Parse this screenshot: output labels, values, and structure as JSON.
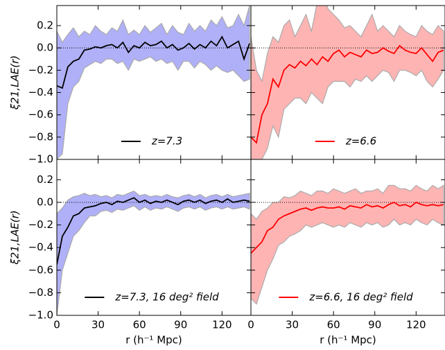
{
  "chart_data": [
    {
      "type": "line",
      "ylabel": "ξ21,LAE(r)",
      "legend": "lower center",
      "hline": 0,
      "xlim": [
        0,
        141
      ],
      "ylim": [
        -1.0,
        0.38
      ],
      "xticks": [
        0,
        30,
        60,
        90,
        120
      ],
      "yticks": [
        {
          "value": -1.0,
          "label": "−1.0"
        },
        {
          "value": -0.8,
          "label": "−0.8"
        },
        {
          "value": -0.6,
          "label": "−0.6"
        },
        {
          "value": -0.4,
          "label": "−0.4"
        },
        {
          "value": -0.2,
          "label": "−0.2"
        },
        {
          "value": 0.0,
          "label": "0.0"
        },
        {
          "value": 0.2,
          "label": "0.2"
        }
      ],
      "x": [
        0,
        4,
        8,
        12,
        16,
        20,
        24,
        28,
        32,
        36,
        40,
        44,
        48,
        52,
        56,
        60,
        64,
        68,
        72,
        76,
        80,
        84,
        88,
        92,
        96,
        100,
        104,
        108,
        112,
        116,
        120,
        124,
        128,
        132,
        136,
        140
      ],
      "series": [
        {
          "name": "z=7.3",
          "color": "#000000",
          "values": [
            -0.34,
            -0.36,
            -0.17,
            -0.12,
            -0.1,
            -0.02,
            -0.01,
            0.01,
            0.0,
            0.02,
            0.03,
            0.0,
            0.05,
            -0.04,
            0.02,
            0.0,
            0.05,
            0.02,
            0.03,
            0.06,
            0.0,
            0.03,
            -0.02,
            0.0,
            0.04,
            -0.01,
            0.03,
            0.0,
            0.06,
            0.02,
            0.1,
            0.0,
            0.03,
            0.06,
            -0.1,
            0.04
          ]
        }
      ],
      "band": {
        "color": "#b0b0f8",
        "upper": [
          0.15,
          0.05,
          0.12,
          0.18,
          0.1,
          0.15,
          0.12,
          0.2,
          0.15,
          0.12,
          0.18,
          0.15,
          0.25,
          0.12,
          0.16,
          0.12,
          0.2,
          0.14,
          0.18,
          0.22,
          0.12,
          0.2,
          0.14,
          0.12,
          0.22,
          0.15,
          0.2,
          0.15,
          0.25,
          0.2,
          0.28,
          0.18,
          0.2,
          0.3,
          0.2,
          0.38
        ],
        "lower": [
          -1.0,
          -0.95,
          -0.5,
          -0.35,
          -0.3,
          -0.18,
          -0.15,
          -0.12,
          -0.14,
          -0.1,
          -0.1,
          -0.14,
          -0.12,
          -0.2,
          -0.1,
          -0.12,
          -0.1,
          -0.08,
          -0.12,
          -0.1,
          -0.14,
          -0.12,
          -0.2,
          -0.12,
          -0.12,
          -0.18,
          -0.12,
          -0.15,
          -0.2,
          -0.16,
          -0.2,
          -0.22,
          -0.2,
          -0.25,
          -0.3,
          -0.28
        ]
      }
    },
    {
      "type": "line",
      "legend": "lower center",
      "hline": 0,
      "xlim": [
        0,
        141
      ],
      "ylim": [
        -1.0,
        0.38
      ],
      "xticks": [
        0,
        30,
        60,
        90,
        120
      ],
      "yticks": [
        -1.0,
        -0.8,
        -0.6,
        -0.4,
        -0.2,
        0.0,
        0.2
      ],
      "x": [
        0,
        4,
        8,
        12,
        16,
        20,
        24,
        28,
        32,
        36,
        40,
        44,
        48,
        52,
        56,
        60,
        64,
        68,
        72,
        76,
        80,
        84,
        88,
        92,
        96,
        100,
        104,
        108,
        112,
        116,
        120,
        124,
        128,
        132,
        136,
        140
      ],
      "series": [
        {
          "name": "z=6.6",
          "color": "#ff0000",
          "values": [
            -0.8,
            -0.85,
            -0.6,
            -0.5,
            -0.28,
            -0.35,
            -0.2,
            -0.15,
            -0.18,
            -0.12,
            -0.16,
            -0.1,
            -0.15,
            -0.08,
            -0.12,
            -0.05,
            -0.02,
            -0.08,
            -0.04,
            -0.06,
            -0.08,
            -0.02,
            -0.05,
            -0.04,
            0.0,
            -0.03,
            -0.05,
            0.02,
            -0.02,
            -0.04,
            -0.05,
            0.0,
            -0.06,
            -0.12,
            -0.04,
            -0.02
          ]
        }
      ],
      "band": {
        "color": "#ffb4b4",
        "upper": [
          0.1,
          -0.2,
          -0.3,
          -0.05,
          0.1,
          0.05,
          0.2,
          0.25,
          0.1,
          0.2,
          0.3,
          0.15,
          0.4,
          0.5,
          0.35,
          0.3,
          0.25,
          0.18,
          0.2,
          0.15,
          0.1,
          0.2,
          0.3,
          0.15,
          0.2,
          0.15,
          0.1,
          0.2,
          0.15,
          0.12,
          0.1,
          0.2,
          0.15,
          0.12,
          0.2,
          0.15
        ],
        "lower": [
          -1.0,
          -1.0,
          -1.0,
          -0.9,
          -0.7,
          -0.8,
          -0.55,
          -0.5,
          -0.45,
          -0.45,
          -0.5,
          -0.4,
          -0.45,
          -0.5,
          -0.35,
          -0.3,
          -0.3,
          -0.3,
          -0.35,
          -0.28,
          -0.3,
          -0.25,
          -0.3,
          -0.25,
          -0.2,
          -0.22,
          -0.3,
          -0.2,
          -0.2,
          -0.22,
          -0.25,
          -0.2,
          -0.3,
          -0.35,
          -0.28,
          -0.2
        ]
      }
    },
    {
      "type": "line",
      "ylabel": "ξ21,LAE(r)",
      "xlabel": "r (h⁻¹ Mpc)",
      "legend": "lower center",
      "hline": 0,
      "xlim": [
        0,
        141
      ],
      "ylim": [
        -1.0,
        0.38
      ],
      "xticks": [
        0,
        30,
        60,
        90,
        120
      ],
      "yticks": [
        {
          "value": -1.0,
          "label": "−1.0"
        },
        {
          "value": -0.8,
          "label": "−0.8"
        },
        {
          "value": -0.6,
          "label": "−0.6"
        },
        {
          "value": -0.4,
          "label": "−0.4"
        },
        {
          "value": -0.2,
          "label": "−0.2"
        },
        {
          "value": 0.0,
          "label": "0.0"
        },
        {
          "value": 0.2,
          "label": "0.2"
        }
      ],
      "x": [
        0,
        4,
        8,
        12,
        16,
        20,
        24,
        28,
        32,
        36,
        40,
        44,
        48,
        52,
        56,
        60,
        64,
        68,
        72,
        76,
        80,
        84,
        88,
        92,
        96,
        100,
        104,
        108,
        112,
        116,
        120,
        124,
        128,
        132,
        136,
        140
      ],
      "series": [
        {
          "name": "z=7.3, 16 deg² field",
          "color": "#000000",
          "values": [
            -0.55,
            -0.3,
            -0.22,
            -0.12,
            -0.1,
            -0.05,
            -0.04,
            -0.03,
            -0.01,
            0.0,
            -0.02,
            0.01,
            0.0,
            0.02,
            0.04,
            0.0,
            0.02,
            -0.01,
            0.01,
            0.0,
            0.02,
            0.0,
            -0.02,
            0.01,
            0.02,
            0.0,
            0.02,
            -0.01,
            0.01,
            0.02,
            0.0,
            0.03,
            0.0,
            0.01,
            0.02,
            0.01
          ]
        }
      ],
      "band": {
        "color": "#b0b0f8",
        "upper": [
          -0.1,
          -0.05,
          0.02,
          0.05,
          0.06,
          0.08,
          0.06,
          0.07,
          0.05,
          0.06,
          0.04,
          0.07,
          0.06,
          0.08,
          0.1,
          0.06,
          0.07,
          0.05,
          0.06,
          0.05,
          0.07,
          0.05,
          0.04,
          0.06,
          0.07,
          0.05,
          0.07,
          0.04,
          0.06,
          0.07,
          0.05,
          0.07,
          0.05,
          0.06,
          0.07,
          0.08
        ],
        "lower": [
          -1.0,
          -0.6,
          -0.45,
          -0.3,
          -0.25,
          -0.18,
          -0.12,
          -0.12,
          -0.08,
          -0.07,
          -0.09,
          -0.06,
          -0.07,
          -0.05,
          -0.03,
          -0.07,
          -0.04,
          -0.07,
          -0.05,
          -0.06,
          -0.04,
          -0.06,
          -0.08,
          -0.05,
          -0.04,
          -0.06,
          -0.04,
          -0.07,
          -0.05,
          -0.04,
          -0.06,
          -0.04,
          -0.06,
          -0.05,
          -0.04,
          -0.06
        ]
      }
    },
    {
      "type": "line",
      "xlabel": "r (h⁻¹ Mpc)",
      "legend": "lower center",
      "hline": 0,
      "xlim": [
        0,
        141
      ],
      "ylim": [
        -1.0,
        0.38
      ],
      "xticks": [
        {
          "value": 0,
          "label": "0"
        },
        {
          "value": 30,
          "label": "30"
        },
        {
          "value": 60,
          "label": "60"
        },
        {
          "value": 90,
          "label": "90"
        },
        {
          "value": 120,
          "label": "120"
        }
      ],
      "yticks": [
        -1.0,
        -0.8,
        -0.6,
        -0.4,
        -0.2,
        0.0,
        0.2
      ],
      "x": [
        0,
        4,
        8,
        12,
        16,
        20,
        24,
        28,
        32,
        36,
        40,
        44,
        48,
        52,
        56,
        60,
        64,
        68,
        72,
        76,
        80,
        84,
        88,
        92,
        96,
        100,
        104,
        108,
        112,
        116,
        120,
        124,
        128,
        132,
        136,
        140
      ],
      "series": [
        {
          "name": "z=6.6, 16 deg² field",
          "color": "#ff0000",
          "values": [
            -0.45,
            -0.4,
            -0.35,
            -0.25,
            -0.22,
            -0.15,
            -0.12,
            -0.1,
            -0.08,
            -0.06,
            -0.05,
            -0.07,
            -0.05,
            -0.04,
            -0.05,
            -0.05,
            -0.04,
            -0.06,
            -0.03,
            -0.04,
            -0.05,
            -0.02,
            -0.04,
            -0.03,
            -0.05,
            -0.02,
            0.0,
            -0.03,
            -0.02,
            -0.04,
            0.0,
            -0.02,
            -0.03,
            -0.02,
            -0.03,
            -0.02
          ]
        }
      ],
      "band": {
        "color": "#ffb4b4",
        "upper": [
          -0.1,
          -0.15,
          -0.08,
          -0.05,
          0.0,
          0.0,
          0.05,
          0.04,
          0.06,
          0.1,
          0.08,
          0.06,
          0.1,
          0.1,
          0.08,
          0.12,
          0.1,
          0.08,
          0.1,
          0.12,
          0.08,
          0.1,
          0.1,
          0.12,
          0.08,
          0.15,
          0.15,
          0.12,
          0.12,
          0.1,
          0.15,
          0.12,
          0.1,
          0.15,
          0.12,
          0.15
        ],
        "lower": [
          -0.85,
          -0.9,
          -0.75,
          -0.6,
          -0.5,
          -0.38,
          -0.35,
          -0.3,
          -0.28,
          -0.25,
          -0.2,
          -0.22,
          -0.2,
          -0.18,
          -0.2,
          -0.22,
          -0.2,
          -0.22,
          -0.18,
          -0.2,
          -0.22,
          -0.18,
          -0.2,
          -0.18,
          -0.22,
          -0.2,
          -0.15,
          -0.2,
          -0.18,
          -0.2,
          -0.15,
          -0.18,
          -0.2,
          -0.15,
          -0.18,
          -0.2
        ]
      }
    }
  ]
}
